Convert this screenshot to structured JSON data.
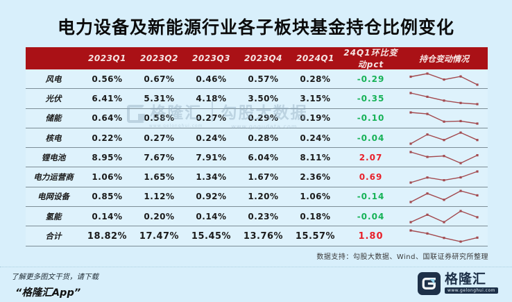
{
  "page": {
    "bg_color": "#d8effb"
  },
  "title": "电力设备及新能源行业各子板块基金持仓比例变化",
  "colors": {
    "header_bg": "#aa1116",
    "row_bg": "#def2fc",
    "border": "#7c8d96",
    "positive_red": "#e8212b",
    "negative_green": "#17b257",
    "sparkline": "#a34a4f",
    "logo_navy": "#1d3048",
    "page_bg": "#d8effb"
  },
  "table": {
    "header": {
      "label_col": "",
      "quarters": [
        "2023Q1",
        "2023Q2",
        "2023Q3",
        "2023Q4",
        "2024Q1"
      ],
      "change_col": "24Q1环比变动pct",
      "spark_col": "持仓变动情况"
    },
    "rows": [
      {
        "label": "风电",
        "values": [
          "0.56%",
          "0.67%",
          "0.46%",
          "0.57%",
          "0.28%"
        ],
        "change": "-0.29"
      },
      {
        "label": "光伏",
        "values": [
          "6.41%",
          "5.31%",
          "4.18%",
          "3.50%",
          "3.15%"
        ],
        "change": "-0.35"
      },
      {
        "label": "储能",
        "values": [
          "0.64%",
          "0.58%",
          "0.27%",
          "0.29%",
          "0.19%"
        ],
        "change": "-0.10"
      },
      {
        "label": "核电",
        "values": [
          "0.22%",
          "0.27%",
          "0.24%",
          "0.28%",
          "0.24%"
        ],
        "change": "-0.04"
      },
      {
        "label": "锂电池",
        "values": [
          "8.95%",
          "7.67%",
          "7.91%",
          "6.04%",
          "8.11%"
        ],
        "change": "2.07"
      },
      {
        "label": "电力运营商",
        "values": [
          "1.06%",
          "1.65%",
          "1.34%",
          "1.67%",
          "2.36%"
        ],
        "change": "0.69"
      },
      {
        "label": "电网设备",
        "values": [
          "0.85%",
          "1.12%",
          "0.92%",
          "1.20%",
          "1.06%"
        ],
        "change": "-0.14"
      },
      {
        "label": "氢能",
        "values": [
          "0.14%",
          "0.20%",
          "0.14%",
          "0.23%",
          "0.18%"
        ],
        "change": "-0.04"
      }
    ],
    "total": {
      "label": "合计",
      "values": [
        "18.82%",
        "17.47%",
        "15.45%",
        "13.76%",
        "15.57%"
      ],
      "change": "1.80"
    }
  },
  "chart_data": {
    "type": "table",
    "title": "电力设备及新能源行业各子板块基金持仓比例变化",
    "columns": [
      "2023Q1",
      "2023Q2",
      "2023Q3",
      "2023Q4",
      "2024Q1",
      "24Q1环比变动pct",
      "持仓变动情况"
    ],
    "rows": [
      {
        "label": "风电",
        "values": [
          0.56,
          0.67,
          0.46,
          0.57,
          0.28
        ],
        "change_pct": -0.29
      },
      {
        "label": "光伏",
        "values": [
          6.41,
          5.31,
          4.18,
          3.5,
          3.15
        ],
        "change_pct": -0.35
      },
      {
        "label": "储能",
        "values": [
          0.64,
          0.58,
          0.27,
          0.29,
          0.19
        ],
        "change_pct": -0.1
      },
      {
        "label": "核电",
        "values": [
          0.22,
          0.27,
          0.24,
          0.28,
          0.24
        ],
        "change_pct": -0.04
      },
      {
        "label": "锂电池",
        "values": [
          8.95,
          7.67,
          7.91,
          6.04,
          8.11
        ],
        "change_pct": 2.07
      },
      {
        "label": "电力运营商",
        "values": [
          1.06,
          1.65,
          1.34,
          1.67,
          2.36
        ],
        "change_pct": 0.69
      },
      {
        "label": "电网设备",
        "values": [
          0.85,
          1.12,
          0.92,
          1.2,
          1.06
        ],
        "change_pct": -0.14
      },
      {
        "label": "氢能",
        "values": [
          0.14,
          0.2,
          0.14,
          0.23,
          0.18
        ],
        "change_pct": -0.04
      }
    ],
    "total": {
      "label": "合计",
      "values": [
        18.82,
        17.47,
        15.45,
        13.76,
        15.57
      ],
      "change_pct": 1.8
    },
    "sparkline_note": "持仓变动情况 column shows a red line sparkline of the five quarterly values per row"
  },
  "footer": {
    "data_support": "数据支持：勾股大数据、Wind、国联证券研究所整理"
  },
  "promo": {
    "line1": "了解更多图文干货，请下载",
    "line2": "“格隆汇App”"
  },
  "brand": {
    "name": "格隆汇",
    "url": "www.gelonghui.com"
  },
  "watermark": {
    "brand": "格隆汇",
    "brand_url": "www.gelonghui.com",
    "partner": "勾股大数据",
    "partner_url": "www.gogudata.com"
  }
}
